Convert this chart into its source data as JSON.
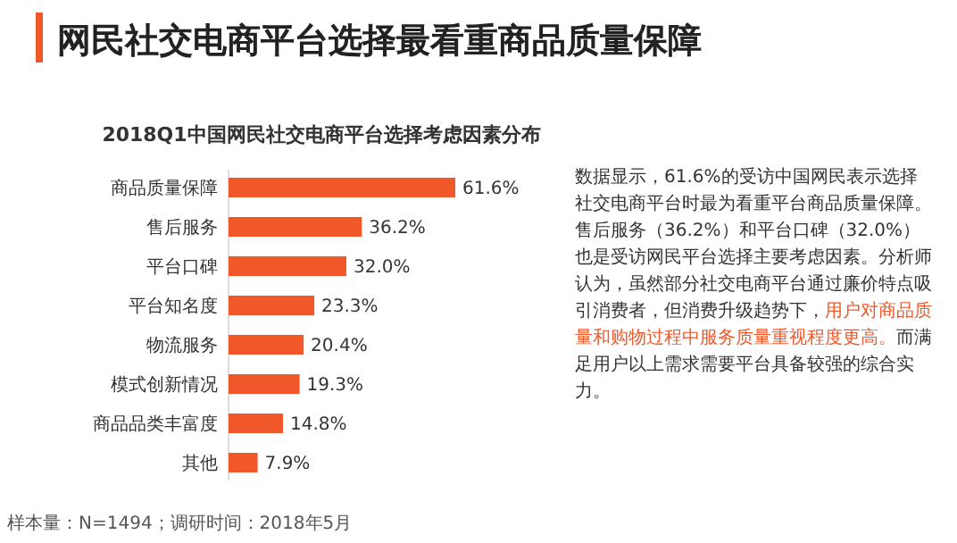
{
  "chart_data": {
    "type": "bar",
    "orientation": "horizontal",
    "title": "网民社交电商平台选择最看重商品质量保障",
    "subtitle": "2018Q1中国网民社交电商平台选择考虑因素分布",
    "categories": [
      "商品质量保障",
      "售后服务",
      "平台口碑",
      "平台知名度",
      "物流服务",
      "模式创新情况",
      "商品品类丰富度",
      "其他"
    ],
    "values": [
      61.6,
      36.2,
      32.0,
      23.3,
      20.4,
      19.3,
      14.8,
      7.9
    ],
    "value_labels": [
      "61.6%",
      "36.2%",
      "32.0%",
      "23.3%",
      "20.4%",
      "19.3%",
      "14.8%",
      "7.9%"
    ],
    "color": "#f0582a",
    "annotations": [
      "数据显示，61.6%的受访中国网民表示选择社交电商平台时最为看重平台商品质量保障。售后服务（36.2%）和平台口碑（32.0%）也是受访网民平台选择主要考虑因素。分析师认为，虽然部分社交电商平台通过廉价特点吸引消费者，但消费升级趋势下，",
      "用户对商品质量和购物过程中服务质量重视程度更高。",
      "而满足用户以上需求需要平台具备较强的综合实力。",
      "样本量：N=1494；调研时间：2018年5月"
    ]
  }
}
